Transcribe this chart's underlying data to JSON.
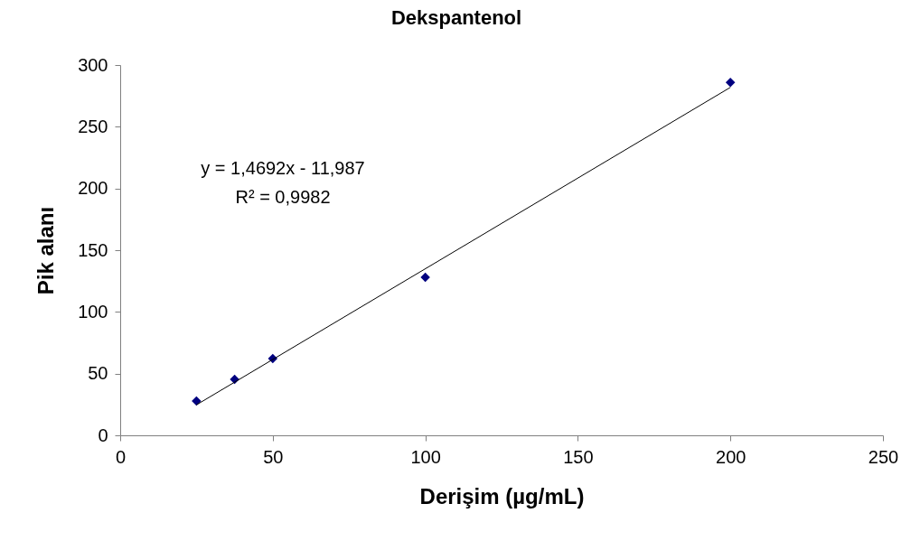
{
  "chart_data": {
    "type": "scatter",
    "title": "Dekspantenol",
    "xlabel": "Derişim (µg/mL)",
    "ylabel": "Pik alanı",
    "xlim": [
      0,
      250
    ],
    "xticks": [
      0,
      50,
      100,
      150,
      200,
      250
    ],
    "ylim": [
      0,
      300
    ],
    "yticks": [
      0,
      50,
      100,
      150,
      200,
      250,
      300
    ],
    "grid": false,
    "annotations": [
      "y = 1,4692x - 11,987",
      "R² = 0,9982"
    ],
    "series": [
      {
        "type": "scatter",
        "x": [
          25,
          37.5,
          50,
          100,
          200
        ],
        "values": [
          27.8,
          45.4,
          62.2,
          128,
          286
        ],
        "color": "#000080",
        "marker": "diamond"
      },
      {
        "type": "line",
        "x": [
          25,
          200
        ],
        "values": [
          24.7,
          281.9
        ],
        "color": "#000000",
        "marker": "none"
      }
    ]
  }
}
